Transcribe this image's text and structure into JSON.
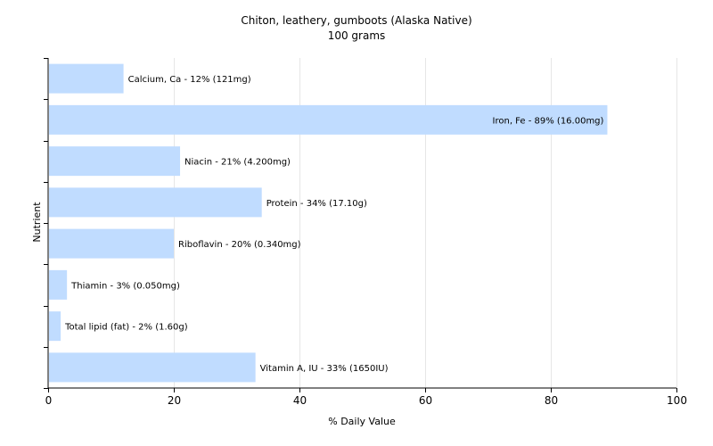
{
  "chart_data": {
    "type": "bar",
    "orientation": "horizontal",
    "title": "Chiton, leathery, gumboots (Alaska Native)",
    "subtitle": "100 grams",
    "xlabel": "% Daily Value",
    "ylabel": "Nutrient",
    "xlim": [
      0,
      100
    ],
    "xticks": [
      0,
      20,
      40,
      60,
      80,
      100
    ],
    "grid": true,
    "bar_color": "#c0dcff",
    "categories": [
      "Calcium, Ca",
      "Iron, Fe",
      "Niacin",
      "Protein",
      "Riboflavin",
      "Thiamin",
      "Total lipid (fat)",
      "Vitamin A, IU"
    ],
    "values": [
      12,
      89,
      21,
      34,
      20,
      3,
      2,
      33
    ],
    "labels": [
      "Calcium, Ca - 12% (121mg)",
      "Iron, Fe - 89% (16.00mg)",
      "Niacin - 21% (4.200mg)",
      "Protein - 34% (17.10g)",
      "Riboflavin - 20% (0.340mg)",
      "Thiamin - 3% (0.050mg)",
      "Total lipid (fat) - 2% (1.60g)",
      "Vitamin A, IU - 33% (1650IU)"
    ]
  }
}
